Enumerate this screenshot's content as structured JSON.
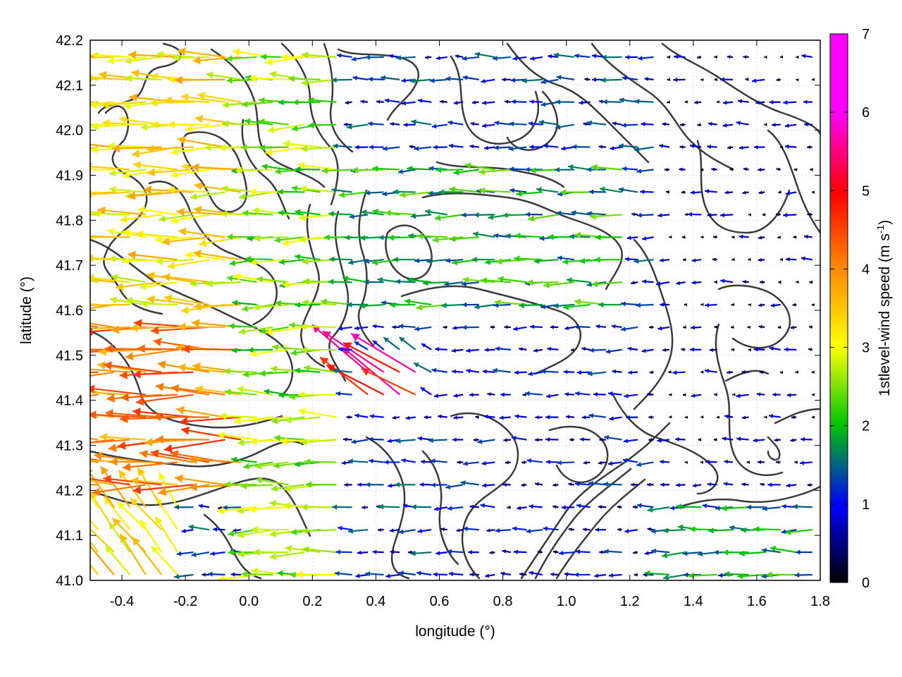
{
  "chart_data": {
    "type": "vector-field",
    "xlabel": "longitude (°)",
    "ylabel": "latitude (°)",
    "xlim": [
      -0.5,
      1.8
    ],
    "ylim": [
      41.0,
      42.2
    ],
    "xticks": [
      "-0.4",
      "-0.2",
      "0.0",
      "0.2",
      "0.4",
      "0.6",
      "0.8",
      "1.0",
      "1.2",
      "1.4",
      "1.6",
      "1.8"
    ],
    "yticks": [
      "41.0",
      "41.1",
      "41.2",
      "41.3",
      "41.4",
      "41.5",
      "41.6",
      "41.7",
      "41.8",
      "41.9",
      "42.0",
      "42.1",
      "42.2"
    ],
    "grid": true,
    "colorbar": {
      "label": "1stlevel-wind speed (m s",
      "label_sup": "-1",
      "label_close": ")",
      "range": [
        0,
        7
      ],
      "ticks": [
        "0",
        "1",
        "2",
        "3",
        "4",
        "5",
        "6",
        "7"
      ],
      "palette": [
        "#000000",
        "#0000ff",
        "#00c800",
        "#ffff00",
        "#ff8c00",
        "#ff0000",
        "#ff00ff"
      ]
    },
    "contours_description_approx": "terrain contour lines in dark grey",
    "wind_field_approx": {
      "dominant_direction": "westward (easterly flow)",
      "regions": [
        {
          "lon": [
            -0.5,
            0.0
          ],
          "lat": [
            41.2,
            41.6
          ],
          "speed": 4.8
        },
        {
          "lon": [
            -0.5,
            0.0
          ],
          "lat": [
            41.6,
            42.2
          ],
          "speed": 3.8
        },
        {
          "lon": [
            -0.5,
            -0.2
          ],
          "lat": [
            41.0,
            41.2
          ],
          "speed": 3.8
        },
        {
          "lon": [
            0.0,
            0.3
          ],
          "lat": [
            41.0,
            42.2
          ],
          "speed": 2.9
        },
        {
          "lon": [
            0.3,
            1.2
          ],
          "lat": [
            41.6,
            41.95
          ],
          "speed": 2.2
        },
        {
          "lon": [
            0.35,
            0.55
          ],
          "lat": [
            41.4,
            41.5
          ],
          "speed": 6.0
        },
        {
          "lon": [
            0.6,
            1.3
          ],
          "lat": [
            41.0,
            41.6
          ],
          "speed": 1.0
        },
        {
          "lon": [
            1.3,
            1.8
          ],
          "lat": [
            41.0,
            41.2
          ],
          "speed": 2.0
        },
        {
          "lon": [
            1.3,
            1.8
          ],
          "lat": [
            41.2,
            42.2
          ],
          "speed": 0.5
        }
      ]
    }
  }
}
